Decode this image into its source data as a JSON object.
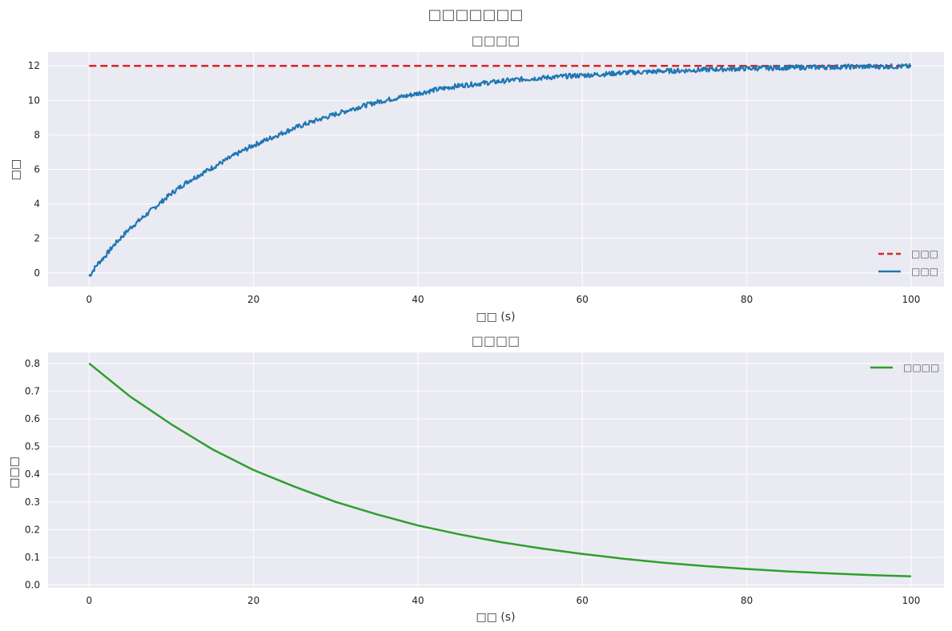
{
  "figure": {
    "suptitle": "□□□□□□□"
  },
  "chart_data": [
    {
      "type": "line",
      "title": "□□□□",
      "xlabel": "□□ (s)",
      "ylabel": "□□",
      "xlim": [
        -5,
        104
      ],
      "ylim": [
        -0.8,
        12.8
      ],
      "x_ticks": [
        0,
        20,
        40,
        60,
        80,
        100
      ],
      "y_ticks": [
        0,
        2,
        4,
        6,
        8,
        10,
        12
      ],
      "grid": true,
      "legend_position": "lower-right",
      "series": [
        {
          "name": "□□□",
          "style": "dashed",
          "color": "#d62728",
          "x": [
            0,
            100
          ],
          "y": [
            12,
            12
          ]
        },
        {
          "name": "□□□",
          "style": "solid",
          "color": "#1f77b4",
          "noisy": true,
          "x": [
            0,
            1,
            2,
            3,
            4,
            5,
            6,
            8,
            10,
            12,
            15,
            18,
            20,
            22,
            25,
            28,
            30,
            32,
            35,
            38,
            40,
            42,
            45,
            48,
            50,
            52,
            55,
            58,
            60,
            62,
            65,
            68,
            70,
            72,
            75,
            78,
            80,
            85,
            90,
            95,
            100
          ],
          "y": [
            -0.2,
            0.5,
            1.0,
            1.6,
            2.1,
            2.6,
            3.0,
            3.8,
            4.6,
            5.3,
            6.1,
            6.9,
            7.4,
            7.8,
            8.4,
            8.9,
            9.2,
            9.5,
            9.9,
            10.2,
            10.4,
            10.6,
            10.85,
            11.0,
            11.1,
            11.2,
            11.3,
            11.4,
            11.45,
            11.5,
            11.6,
            11.65,
            11.7,
            11.72,
            11.78,
            11.82,
            11.85,
            11.9,
            11.93,
            11.96,
            11.97
          ]
        }
      ]
    },
    {
      "type": "line",
      "title": "□□□□",
      "xlabel": "□□ (s)",
      "ylabel": "□□□",
      "xlim": [
        -5,
        104
      ],
      "ylim": [
        -0.01,
        0.84
      ],
      "x_ticks": [
        0,
        20,
        40,
        60,
        80,
        100
      ],
      "y_ticks": [
        0.0,
        0.1,
        0.2,
        0.3,
        0.4,
        0.5,
        0.6,
        0.7,
        0.8
      ],
      "grid": true,
      "legend_position": "upper-right",
      "series": [
        {
          "name": "□□□□",
          "style": "solid",
          "color": "#2ca02c",
          "x": [
            0,
            5,
            10,
            15,
            20,
            25,
            30,
            35,
            40,
            45,
            50,
            55,
            60,
            65,
            70,
            75,
            80,
            85,
            90,
            95,
            100
          ],
          "y": [
            0.8,
            0.68,
            0.58,
            0.49,
            0.415,
            0.355,
            0.3,
            0.255,
            0.215,
            0.183,
            0.155,
            0.132,
            0.112,
            0.095,
            0.08,
            0.068,
            0.058,
            0.049,
            0.042,
            0.036,
            0.031
          ]
        }
      ]
    }
  ]
}
